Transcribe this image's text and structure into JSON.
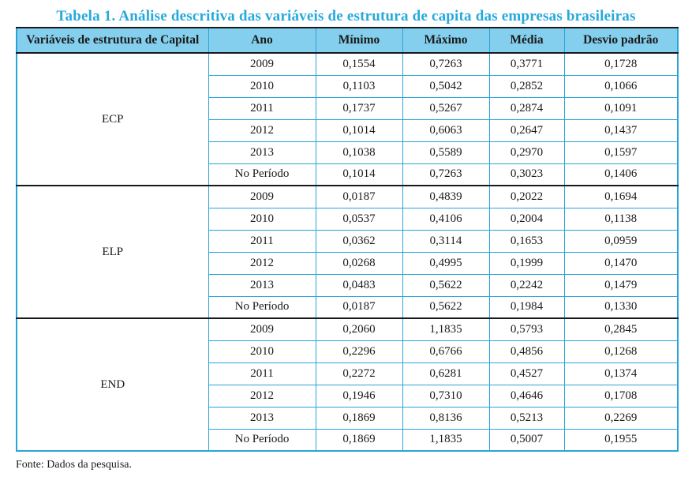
{
  "title": "Tabela 1. Análise descritiva das variáveis de estrutura de capita das empresas brasileiras",
  "source_note": "Fonte: Dados da pesquisa.",
  "colors": {
    "title_accent": "#26a9dc",
    "table_border": "#29a4d9",
    "header_background": "#85cfee",
    "dark_rule": "#17191d",
    "text": "#1a1a1a"
  },
  "table": {
    "headers": [
      "Variáveis de estrutura de Capital",
      "Ano",
      "Mínimo",
      "Máximo",
      "Média",
      "Desvio padrão"
    ],
    "groups": [
      {
        "variable": "ECP",
        "rows": [
          [
            "2009",
            "0,1554",
            "0,7263",
            "0,3771",
            "0,1728"
          ],
          [
            "2010",
            "0,1103",
            "0,5042",
            "0,2852",
            "0,1066"
          ],
          [
            "2011",
            "0,1737",
            "0,5267",
            "0,2874",
            "0,1091"
          ],
          [
            "2012",
            "0,1014",
            "0,6063",
            "0,2647",
            "0,1437"
          ],
          [
            "2013",
            "0,1038",
            "0,5589",
            "0,2970",
            "0,1597"
          ],
          [
            "No Período",
            "0,1014",
            "0,7263",
            "0,3023",
            "0,1406"
          ]
        ]
      },
      {
        "variable": "ELP",
        "rows": [
          [
            "2009",
            "0,0187",
            "0,4839",
            "0,2022",
            "0,1694"
          ],
          [
            "2010",
            "0,0537",
            "0,4106",
            "0,2004",
            "0,1138"
          ],
          [
            "2011",
            "0,0362",
            "0,3114",
            "0,1653",
            "0,0959"
          ],
          [
            "2012",
            "0,0268",
            "0,4995",
            "0,1999",
            "0,1470"
          ],
          [
            "2013",
            "0,0483",
            "0,5622",
            "0,2242",
            "0,1479"
          ],
          [
            "No Período",
            "0,0187",
            "0,5622",
            "0,1984",
            "0,1330"
          ]
        ]
      },
      {
        "variable": "END",
        "rows": [
          [
            "2009",
            "0,2060",
            "1,1835",
            "0,5793",
            "0,2845"
          ],
          [
            "2010",
            "0,2296",
            "0,6766",
            "0,4856",
            "0,1268"
          ],
          [
            "2011",
            "0,2272",
            "0,6281",
            "0,4527",
            "0,1374"
          ],
          [
            "2012",
            "0,1946",
            "0,7310",
            "0,4646",
            "0,1708"
          ],
          [
            "2013",
            "0,1869",
            "0,8136",
            "0,5213",
            "0,2269"
          ],
          [
            "No Período",
            "0,1869",
            "1,1835",
            "0,5007",
            "0,1955"
          ]
        ]
      }
    ]
  }
}
